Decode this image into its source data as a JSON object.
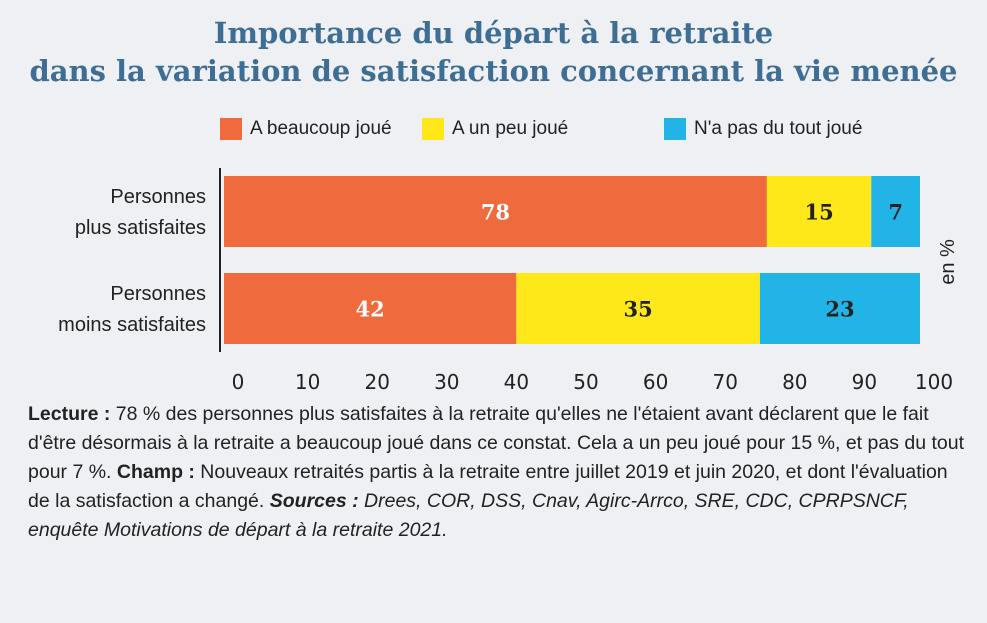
{
  "title_line1": "Importance du départ à la retraite",
  "title_line2": "dans la variation de satisfaction concernant la vie menée",
  "unit_label": "en %",
  "colors": {
    "beaucoup": "#ef6a3c",
    "peu": "#ffe81a",
    "pas": "#22b4e6",
    "title": "#3f6e95",
    "background": "#eef0f4"
  },
  "chart_data": {
    "type": "bar",
    "orientation": "horizontal",
    "stacked": true,
    "title": "Importance du départ à la retraite dans la variation de satisfaction concernant la vie menée",
    "categories": [
      [
        "Personnes",
        "plus satisfaites"
      ],
      [
        "Personnes",
        "moins satisfaites"
      ]
    ],
    "series": [
      {
        "name": "A beaucoup joué",
        "color": "#ef6a3c",
        "values": [
          78,
          42
        ]
      },
      {
        "name": "A un peu joué",
        "color": "#ffe81a",
        "values": [
          15,
          35
        ]
      },
      {
        "name": "N'a pas du tout joué",
        "color": "#22b4e6",
        "values": [
          7,
          23
        ]
      }
    ],
    "xlim": [
      0,
      100
    ],
    "xticks": [
      "0",
      "10",
      "20",
      "30",
      "40",
      "50",
      "60",
      "70",
      "80",
      "90",
      "100"
    ],
    "ylabel": "en %",
    "legend_position": "top",
    "grid": false
  },
  "notes": {
    "lecture_label": "Lecture :",
    "lecture_text": " 78 % des personnes plus satisfaites à la retraite qu'elles ne l'étaient avant déclarent que le fait d'être désormais à la retraite a beaucoup joué dans ce constat. Cela a un peu joué pour 15 %, et pas du tout pour 7 %. ",
    "champ_label": "Champ :",
    "champ_text": " Nouveaux retraités partis à la retraite entre juillet 2019 et juin 2020, et dont l'évaluation de la satisfaction a changé. ",
    "sources_label": "Sources :",
    "sources_text": " Drees, COR, DSS, Cnav, Agirc-Arrco, SRE, CDC, CPRPSNCF, enquête Motivations de départ à la retraite 2021."
  }
}
